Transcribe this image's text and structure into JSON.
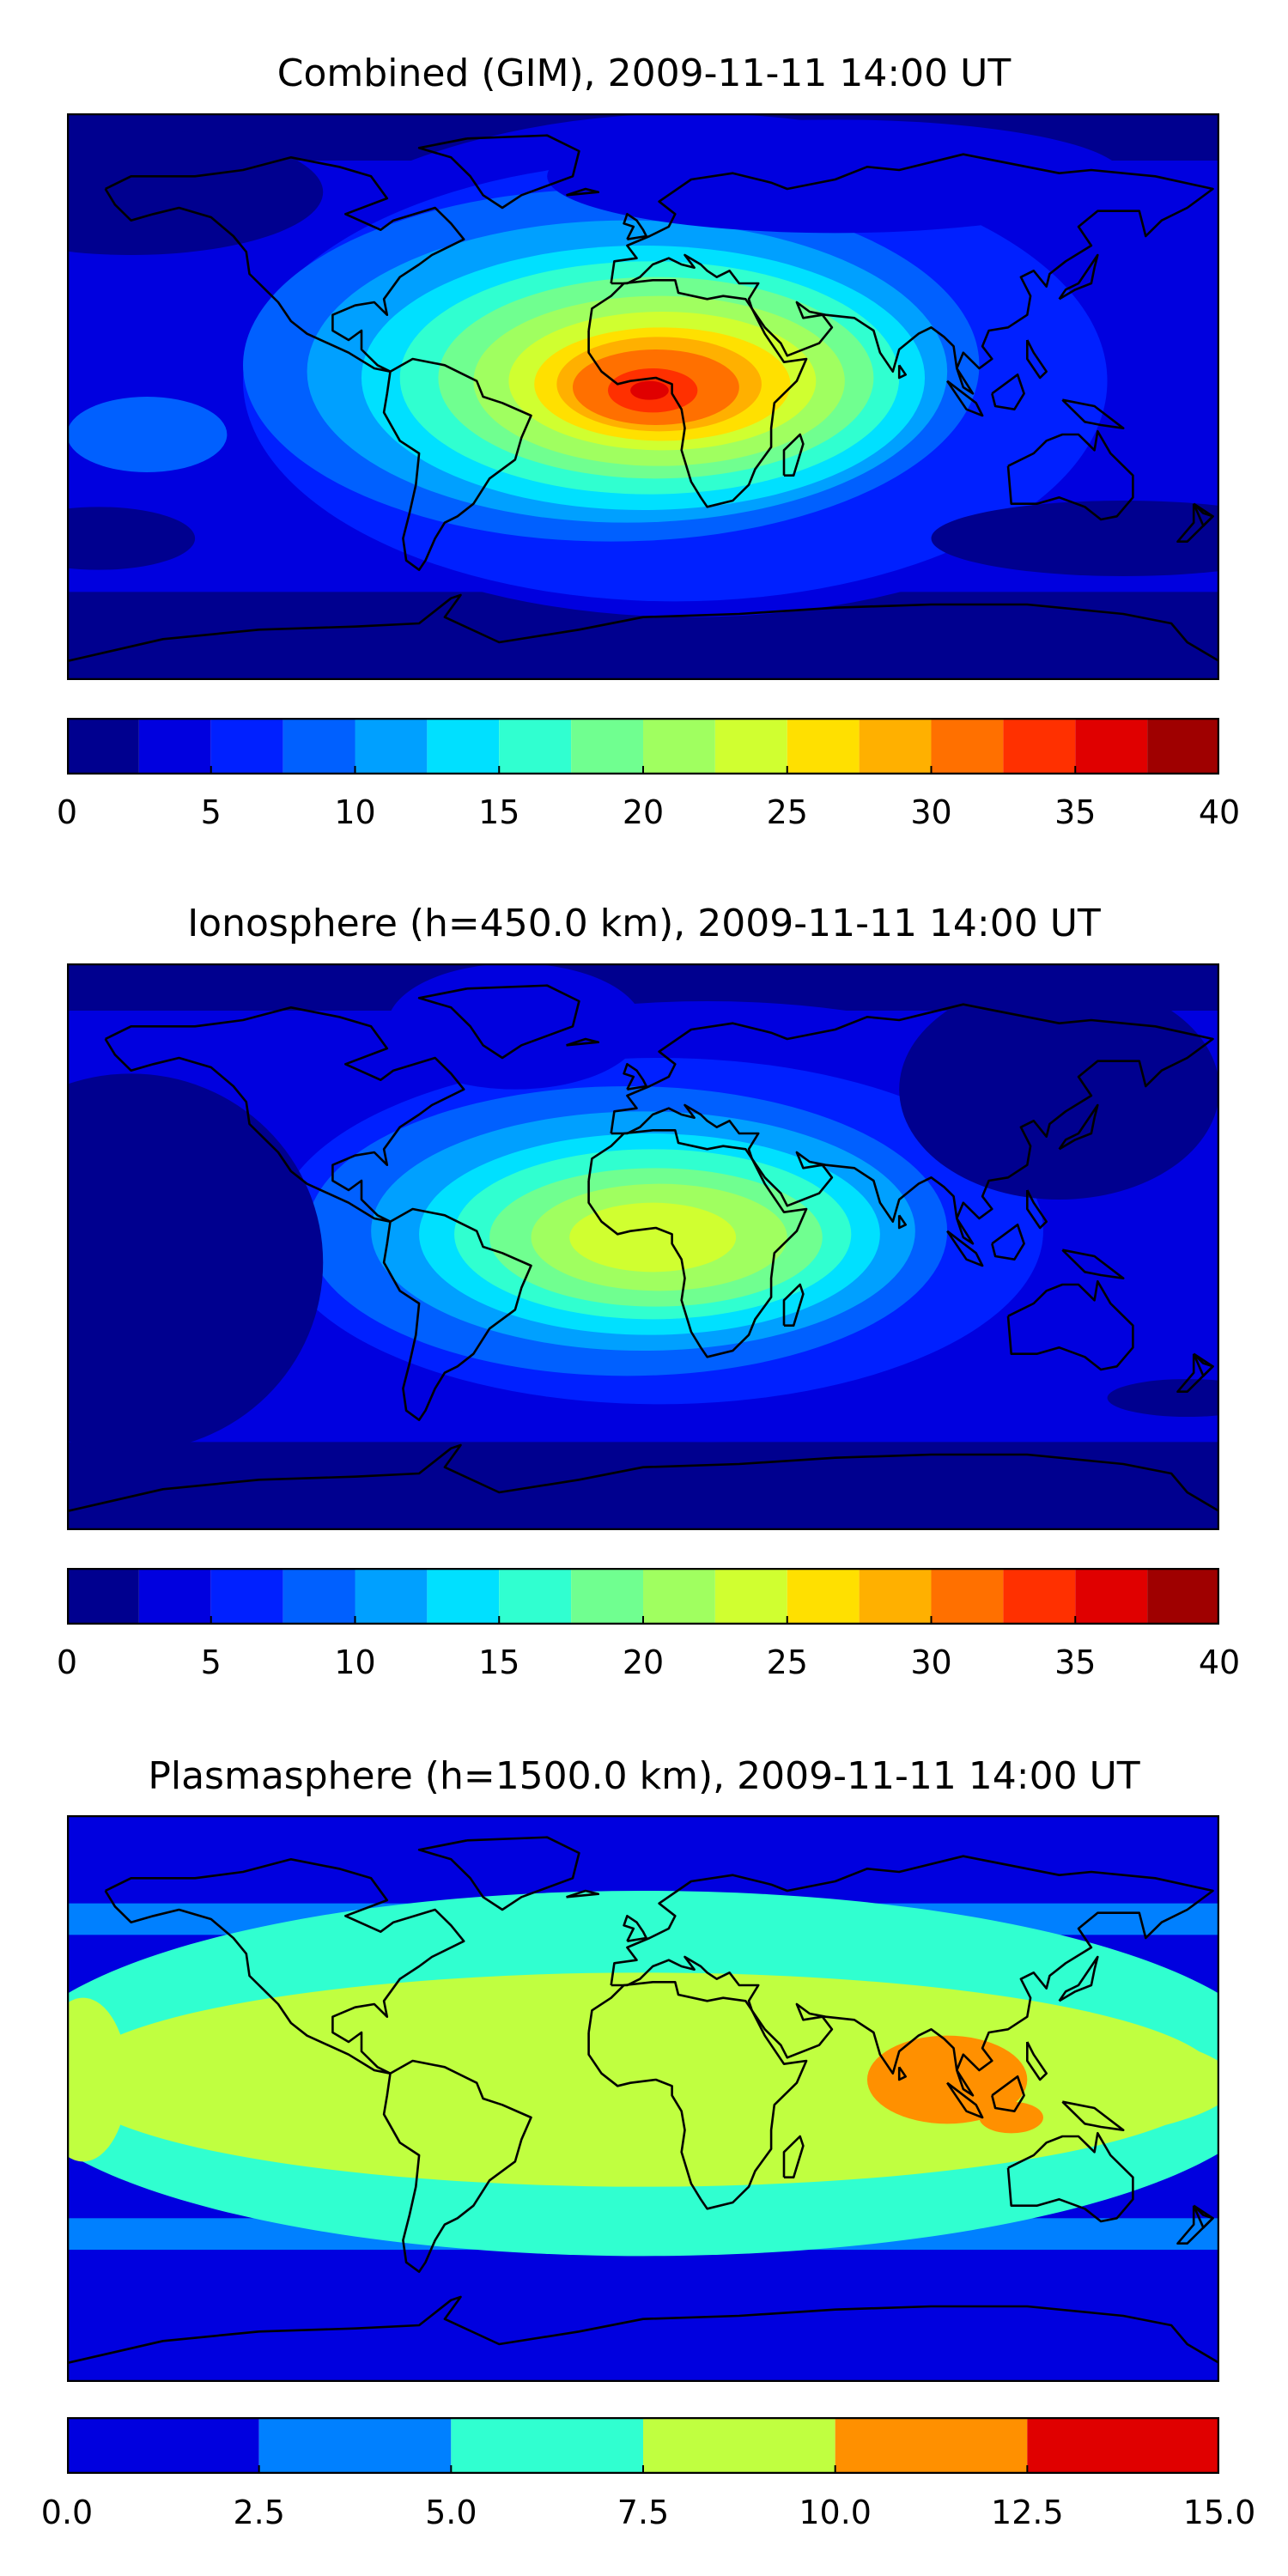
{
  "chart_data": [
    {
      "type": "heatmap",
      "title": "Combined (GIM), 2009-11-11 14:00 UT",
      "map": "filled contour world map (equirectangular) with coastlines",
      "xlim": [
        -180,
        180
      ],
      "ylim": [
        -90,
        90
      ],
      "levels": [
        0,
        2.5,
        5,
        7.5,
        10,
        12.5,
        15,
        17.5,
        20,
        22.5,
        25,
        27.5,
        30,
        32.5,
        35,
        37.5,
        40
      ],
      "colors": [
        "#00008f",
        "#0000df",
        "#0020ff",
        "#0060ff",
        "#00a0ff",
        "#00e0ff",
        "#30ffd0",
        "#70ff90",
        "#a0ff60",
        "#d0ff30",
        "#ffe000",
        "#ffb000",
        "#ff7000",
        "#ff3000",
        "#e00000",
        "#9f0000"
      ],
      "colorbar_ticks": [
        "0",
        "5",
        "10",
        "15",
        "20",
        "25",
        "30",
        "35",
        "40"
      ],
      "colorbar_tick_values": [
        0,
        5,
        10,
        15,
        20,
        25,
        30,
        35,
        40
      ],
      "peak": {
        "lon": 5,
        "lat": 2,
        "value": 34
      }
    },
    {
      "type": "heatmap",
      "title": "Ionosphere  (h=450.0 km), 2009-11-11 14:00 UT",
      "map": "filled contour world map (equirectangular) with coastlines",
      "xlim": [
        -180,
        180
      ],
      "ylim": [
        -90,
        90
      ],
      "levels": [
        0,
        2.5,
        5,
        7.5,
        10,
        12.5,
        15,
        17.5,
        20,
        22.5,
        25,
        27.5,
        30,
        32.5,
        35,
        37.5,
        40
      ],
      "colors": [
        "#00008f",
        "#0000df",
        "#0020ff",
        "#0060ff",
        "#00a0ff",
        "#00e0ff",
        "#30ffd0",
        "#70ff90",
        "#a0ff60",
        "#d0ff30",
        "#ffe000",
        "#ffb000",
        "#ff7000",
        "#ff3000",
        "#e00000",
        "#9f0000"
      ],
      "colorbar_ticks": [
        "0",
        "5",
        "10",
        "15",
        "20",
        "25",
        "30",
        "35",
        "40"
      ],
      "colorbar_tick_values": [
        0,
        5,
        10,
        15,
        20,
        25,
        30,
        35,
        40
      ],
      "peak": {
        "lon": 0,
        "lat": 3,
        "value": 24
      }
    },
    {
      "type": "heatmap",
      "title": "Plasmasphere (h=1500.0 km), 2009-11-11 14:00 UT",
      "map": "filled contour world map (equirectangular) with coastlines",
      "xlim": [
        -180,
        180
      ],
      "ylim": [
        -90,
        90
      ],
      "levels": [
        0,
        2.5,
        5,
        7.5,
        10,
        12.5,
        15
      ],
      "colors": [
        "#0000df",
        "#0080ff",
        "#30ffd0",
        "#c0ff40",
        "#ff9000",
        "#e00000"
      ],
      "colorbar_ticks": [
        "0.0",
        "2.5",
        "5.0",
        "7.5",
        "10.0",
        "12.5",
        "15.0"
      ],
      "colorbar_tick_values": [
        0,
        2.5,
        5,
        7.5,
        10,
        12.5,
        15
      ],
      "peak": {
        "lon": 95,
        "lat": 5,
        "value": 11
      }
    }
  ]
}
